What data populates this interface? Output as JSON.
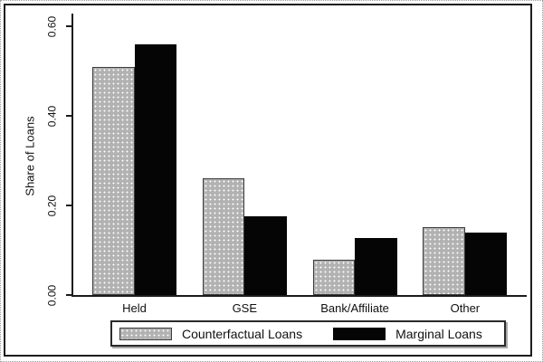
{
  "figure": {
    "background": "#ffffff",
    "frame_color": "#1c1c1c"
  },
  "chart_data": {
    "type": "bar",
    "title": "",
    "categories": [
      "Held",
      "GSE",
      "Bank/Affiliate",
      "Other"
    ],
    "series": [
      {
        "name": "Counterfactual Loans",
        "color": "#b2b2b2",
        "pattern": "white-dots",
        "values": [
          0.51,
          0.26,
          0.078,
          0.151
        ]
      },
      {
        "name": "Marginal Loans",
        "color": "#050505",
        "pattern": "solid",
        "values": [
          0.56,
          0.175,
          0.127,
          0.139
        ]
      }
    ],
    "xlabel": "",
    "ylabel": "Share of Loans",
    "yticks": [
      0.0,
      0.2,
      0.4,
      0.6
    ],
    "ytick_labels": [
      "0.00",
      "0.20",
      "0.40",
      "0.60"
    ],
    "ylim": [
      0,
      0.63
    ],
    "grid": false,
    "legend_position": "bottom-box",
    "legend": [
      "Counterfactual Loans",
      "Marginal Loans"
    ]
  }
}
